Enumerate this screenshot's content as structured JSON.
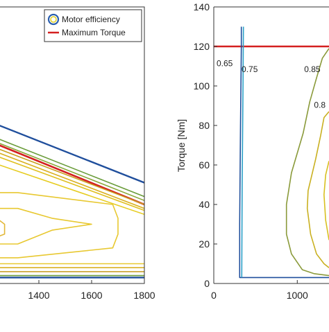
{
  "chart_data": [
    {
      "type": "line",
      "xlabel": "",
      "ylabel": "",
      "xlim": [
        1250,
        1800
      ],
      "ylim": [
        0,
        140
      ],
      "x_ticks": [
        1400,
        1600,
        1800
      ],
      "grid": false,
      "legend_position": "top-right",
      "legend": [
        {
          "name": "Motor efficiency",
          "marker": "circle",
          "color": "#2a5fae"
        },
        {
          "name": "Maximum Torque",
          "marker": "line",
          "color": "#d42020"
        }
      ],
      "series": [
        {
          "role": "max-torque",
          "color": "#d42020",
          "points": [
            [
              1250,
              70
            ],
            [
              1800,
              40
            ]
          ]
        },
        {
          "role": "boundary",
          "color": "#1f4e9c",
          "points": [
            [
              1250,
              80
            ],
            [
              1800,
              51
            ]
          ]
        },
        {
          "role": "contour",
          "color": "#6a9c3a",
          "points": [
            [
              1250,
              73
            ],
            [
              1800,
              44
            ]
          ]
        },
        {
          "role": "contour",
          "color": "#8aa838",
          "points": [
            [
              1250,
              71
            ],
            [
              1800,
              42
            ]
          ]
        },
        {
          "role": "contour",
          "color": "#c9a020",
          "points": [
            [
              1250,
              68
            ],
            [
              1800,
              40
            ]
          ]
        },
        {
          "role": "contour",
          "color": "#d9b020",
          "points": [
            [
              1250,
              66
            ],
            [
              1800,
              38
            ]
          ]
        },
        {
          "role": "contour",
          "color": "#e0c020",
          "points": [
            [
              1250,
              64
            ],
            [
              1800,
              37
            ]
          ]
        },
        {
          "role": "contour",
          "color": "#e6cc20",
          "points": [
            [
              1250,
              60
            ],
            [
              1800,
              35
            ]
          ]
        },
        {
          "role": "contour",
          "color": "#e8c830",
          "points": [
            [
              1250,
              46
            ],
            [
              1320,
              46
            ],
            [
              1680,
              40
            ],
            [
              1700,
              33
            ],
            [
              1700,
              25
            ],
            [
              1680,
              18
            ],
            [
              1320,
              13
            ],
            [
              1250,
              13
            ]
          ]
        },
        {
          "role": "contour",
          "color": "#e8c830",
          "points": [
            [
              1250,
              38
            ],
            [
              1320,
              38
            ],
            [
              1450,
              33
            ],
            [
              1600,
              30
            ],
            [
              1450,
              27
            ],
            [
              1320,
              20
            ],
            [
              1250,
              20
            ]
          ]
        },
        {
          "role": "contour",
          "color": "#e2b838",
          "points": [
            [
              1250,
              32
            ],
            [
              1270,
              30
            ],
            [
              1270,
              25
            ],
            [
              1250,
              24
            ]
          ]
        },
        {
          "role": "contour",
          "color": "#e8c830",
          "points": [
            [
              1250,
              10
            ],
            [
              1800,
              10
            ]
          ]
        },
        {
          "role": "contour",
          "color": "#d9b020",
          "points": [
            [
              1250,
              8
            ],
            [
              1800,
              8
            ]
          ]
        },
        {
          "role": "contour",
          "color": "#c8a028",
          "points": [
            [
              1250,
              6
            ],
            [
              1800,
              6
            ]
          ]
        },
        {
          "role": "contour",
          "color": "#6a9c3a",
          "points": [
            [
              1250,
              4
            ],
            [
              1800,
              4
            ]
          ]
        },
        {
          "role": "boundary",
          "color": "#1f4e9c",
          "points": [
            [
              1250,
              3
            ],
            [
              1800,
              3
            ]
          ]
        }
      ]
    },
    {
      "type": "line",
      "xlabel": "",
      "ylabel": "Torque [Nm]",
      "xlim": [
        0,
        1380
      ],
      "ylim": [
        0,
        140
      ],
      "x_ticks": [
        0,
        1000
      ],
      "y_ticks": [
        0,
        20,
        40,
        60,
        80,
        100,
        120,
        140
      ],
      "grid": false,
      "annotations": [
        {
          "text": "0.65",
          "x": 130,
          "y": 110
        },
        {
          "text": "0.75",
          "x": 430,
          "y": 107
        },
        {
          "text": "0.85",
          "x": 1180,
          "y": 107
        },
        {
          "text": "0.8",
          "x": 1270,
          "y": 89
        }
      ],
      "series": [
        {
          "role": "max-torque",
          "color": "#d42020",
          "points": [
            [
              0,
              120
            ],
            [
              1380,
              120
            ]
          ]
        },
        {
          "role": "contour",
          "color": "#1f4e9c",
          "points": [
            [
              330,
              130
            ],
            [
              330,
              120
            ],
            [
              320,
              80
            ],
            [
              310,
              30
            ],
            [
              310,
              3
            ],
            [
              1380,
              3
            ]
          ]
        },
        {
          "role": "contour",
          "color": "#2aa0c8",
          "points": [
            [
              355,
              130
            ],
            [
              350,
              100
            ],
            [
              340,
              50
            ],
            [
              335,
              3
            ]
          ]
        },
        {
          "role": "contour",
          "color": "#8a9a3a",
          "points": [
            [
              1380,
              119
            ],
            [
              1300,
              114
            ],
            [
              1230,
              104
            ],
            [
              1150,
              92
            ],
            [
              1070,
              76
            ],
            [
              930,
              56
            ],
            [
              870,
              40
            ],
            [
              870,
              25
            ],
            [
              930,
              15
            ],
            [
              1060,
              7
            ],
            [
              1200,
              5
            ],
            [
              1380,
              4
            ]
          ]
        },
        {
          "role": "contour",
          "color": "#c9b020",
          "points": [
            [
              1380,
              87
            ],
            [
              1320,
              84
            ],
            [
              1280,
              75
            ],
            [
              1220,
              63
            ],
            [
              1130,
              47
            ],
            [
              1120,
              38
            ],
            [
              1160,
              25
            ],
            [
              1230,
              15
            ],
            [
              1320,
              10
            ],
            [
              1380,
              8
            ]
          ]
        },
        {
          "role": "contour",
          "color": "#d8c020",
          "points": [
            [
              1380,
              62
            ],
            [
              1340,
              55
            ],
            [
              1320,
              45
            ],
            [
              1340,
              32
            ],
            [
              1380,
              22
            ]
          ]
        }
      ]
    }
  ]
}
